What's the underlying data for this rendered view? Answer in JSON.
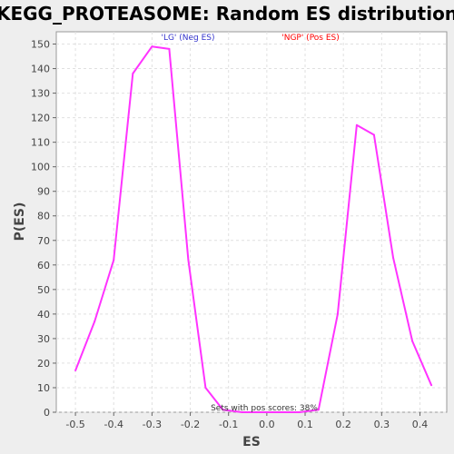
{
  "chart_data": {
    "type": "line",
    "title": "KEGG_PROTEASOME: Random ES distribution",
    "xlabel": "ES",
    "ylabel": "P(ES)",
    "xlim": [
      -0.55,
      0.47
    ],
    "ylim": [
      0,
      155
    ],
    "grid": true,
    "x_ticks": [
      -0.5,
      -0.4,
      -0.3,
      -0.2,
      -0.1,
      0.0,
      0.1,
      0.2,
      0.3,
      0.4
    ],
    "x_tick_labels": [
      "-0.5",
      "-0.4",
      "-0.3",
      "-0.2",
      "-0.1",
      "0.0",
      "0.1",
      "0.2",
      "0.3",
      "0.4"
    ],
    "y_ticks": [
      0,
      10,
      20,
      30,
      40,
      50,
      60,
      70,
      80,
      90,
      100,
      110,
      120,
      130,
      140,
      150
    ],
    "series": [
      {
        "color": "#ff33ff",
        "x": [
          -0.5,
          -0.45,
          -0.4,
          -0.35,
          -0.3,
          -0.255,
          -0.205,
          -0.16,
          -0.115,
          -0.065,
          -0.02,
          0.03,
          0.085,
          0.135,
          0.185,
          0.235,
          0.28,
          0.33,
          0.38,
          0.43
        ],
        "y": [
          17,
          37,
          62,
          138,
          149,
          148,
          62,
          10,
          1,
          0,
          0,
          0,
          0,
          1,
          40,
          117,
          113,
          63,
          29,
          11
        ]
      }
    ],
    "annotations": {
      "neg_label": "'LG' (Neg ES)",
      "neg_color": "#3333cc",
      "pos_label": "'NGP' (Pos ES)",
      "pos_color": "#ff0000",
      "pos_scores_text": "Sets with pos scores: 38%"
    }
  }
}
